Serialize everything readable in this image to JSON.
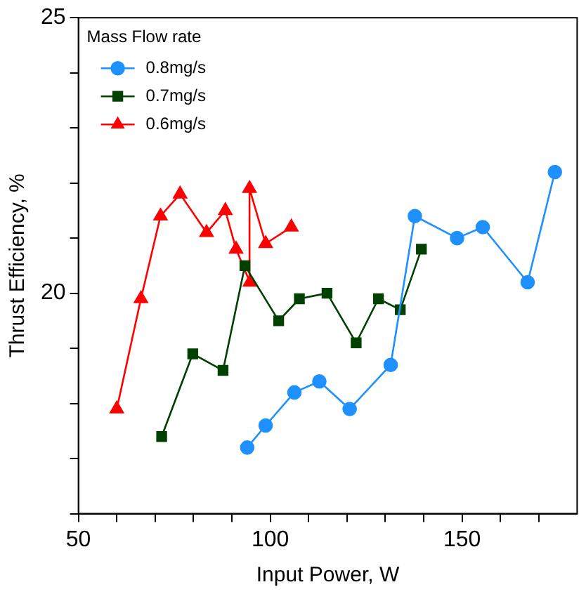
{
  "chart_data": {
    "type": "line",
    "xlabel": "Input Power, W",
    "ylabel": "Thrust Efficiency, %",
    "legend_title": "Mass Flow rate",
    "legend": "top left",
    "grid": false,
    "xlim": [
      50,
      180
    ],
    "xticks": [
      50,
      {
        "value": 60,
        "label": null
      },
      {
        "value": 70,
        "label": null
      },
      {
        "value": 80,
        "label": null
      },
      {
        "value": 90,
        "label": null
      },
      100,
      {
        "value": 110,
        "label": null
      },
      {
        "value": 120,
        "label": null
      },
      {
        "value": 130,
        "label": null
      },
      {
        "value": 140,
        "label": null
      },
      150,
      {
        "value": 160,
        "label": null
      },
      {
        "value": 170,
        "label": null
      }
    ],
    "ylim": [
      16,
      25
    ],
    "yticks": [
      {
        "value": 16,
        "label": null
      },
      {
        "value": 17,
        "label": null
      },
      {
        "value": 18,
        "label": null
      },
      {
        "value": 19,
        "label": null
      },
      20,
      {
        "value": 21,
        "label": null
      },
      {
        "value": 22,
        "label": null
      },
      {
        "value": 23,
        "label": null
      },
      {
        "value": 24,
        "label": null
      },
      25
    ],
    "series": [
      {
        "name": "0.8mg/s",
        "color": "#1e90ff",
        "marker": "circle",
        "x": [
          94.0,
          98.8,
          106.3,
          112.8,
          120.7,
          131.4,
          137.7,
          148.7,
          155.4,
          167.1,
          174.2
        ],
        "values": [
          17.2,
          17.6,
          18.2,
          18.4,
          17.9,
          18.7,
          21.4,
          21.0,
          21.2,
          20.2,
          22.2
        ]
      },
      {
        "name": "0.7mg/s",
        "color": "#004000",
        "marker": "square",
        "x": [
          71.7,
          79.8,
          87.7,
          93.4,
          102.2,
          107.6,
          114.8,
          122.4,
          128.2,
          133.9,
          139.4
        ],
        "values": [
          17.4,
          18.9,
          18.6,
          20.5,
          19.5,
          19.9,
          20.0,
          19.1,
          19.9,
          19.7,
          20.8
        ]
      },
      {
        "name": "0.6mg/s",
        "color": "#ff0000",
        "marker": "triangle",
        "x": [
          60.0,
          66.3,
          71.4,
          76.5,
          83.4,
          88.3,
          91.1,
          94.7,
          94.6,
          98.8,
          105.5
        ],
        "values": [
          17.9,
          19.9,
          21.4,
          21.8,
          21.1,
          21.5,
          20.8,
          20.2,
          21.9,
          20.9,
          21.2
        ]
      }
    ]
  }
}
